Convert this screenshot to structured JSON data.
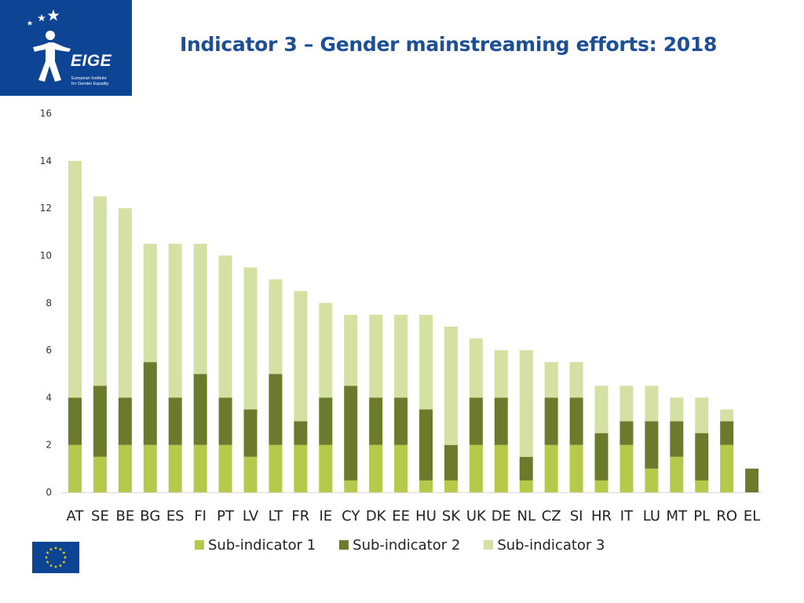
{
  "header": {
    "title": "Indicator 3 – Gender mainstreaming efforts: 2018",
    "logo_text": "EIGE",
    "logo_subtitle_line1": "European Institute",
    "logo_subtitle_line2": "for Gender Equality"
  },
  "colors": {
    "logo_bg": "#0d4493",
    "title": "#1d4f96",
    "sub1": "#b5c94a",
    "sub2": "#6b7b2b",
    "sub3": "#d5e0a3",
    "eu_flag": "#0d4493",
    "eu_stars": "#ffdd00"
  },
  "chart_data": {
    "type": "bar",
    "stacked": true,
    "title": "Indicator 3 – Gender mainstreaming efforts: 2018",
    "xlabel": "",
    "ylabel": "",
    "ylim": [
      0,
      16
    ],
    "yticks": [
      0,
      2,
      4,
      6,
      8,
      10,
      12,
      14,
      16
    ],
    "grid": false,
    "legend_position": "bottom",
    "categories": [
      "AT",
      "SE",
      "BE",
      "BG",
      "ES",
      "FI",
      "PT",
      "LV",
      "LT",
      "FR",
      "IE",
      "CY",
      "DK",
      "EE",
      "HU",
      "SK",
      "UK",
      "DE",
      "NL",
      "CZ",
      "SI",
      "HR",
      "IT",
      "LU",
      "MT",
      "PL",
      "RO",
      "EL"
    ],
    "series": [
      {
        "name": "Sub-indicator 1",
        "values": [
          2,
          1.5,
          2,
          2,
          2,
          2,
          2,
          1.5,
          2,
          2,
          2,
          0.5,
          2,
          2,
          0.5,
          0.5,
          2,
          2,
          0.5,
          2,
          2,
          0.5,
          2,
          1,
          1.5,
          0.5,
          2,
          0
        ]
      },
      {
        "name": "Sub-indicator 2",
        "values": [
          2,
          3,
          2,
          3.5,
          2,
          3,
          2,
          2,
          3,
          1,
          2,
          4,
          2,
          2,
          3,
          1.5,
          2,
          2,
          1,
          2,
          2,
          2,
          1,
          2,
          1.5,
          2,
          1,
          1
        ]
      },
      {
        "name": "Sub-indicator 3",
        "values": [
          10,
          8,
          8,
          5,
          6.5,
          5.5,
          6,
          6,
          4,
          5.5,
          4,
          3,
          3.5,
          3.5,
          4,
          5,
          2.5,
          2,
          4.5,
          1.5,
          1.5,
          2,
          1.5,
          1.5,
          1,
          1.5,
          0.5,
          0
        ]
      }
    ]
  }
}
